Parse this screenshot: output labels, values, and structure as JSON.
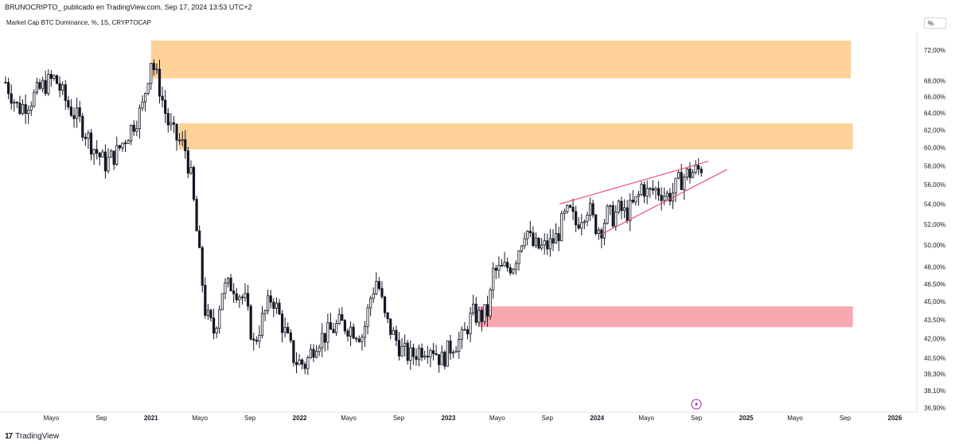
{
  "header": {
    "publisher_line": "BRUNOCRIPTO_ publicado en TradingView.com, Sep 17, 2024 13:53 UTC+2",
    "symbol_line": "Market Cap BTC Dominance, %, 1S, CRYPTOCAP",
    "scale_button": "%"
  },
  "footer": {
    "logo_mark": "17",
    "brand": "TradingView"
  },
  "colors": {
    "up": "#131722",
    "down": "#131722",
    "resistance_zone": "#fdd197",
    "support_zone": "#f9a8b2",
    "wedge_line": "#e8436b",
    "grid": "#ffffff",
    "axis_text": "#131722"
  },
  "icons": {
    "lightning": "lightning-icon"
  },
  "chart_data": {
    "type": "candlestick",
    "title": "Market Cap BTC Dominance, %, 1S, CRYPTOCAP",
    "y_scale": "log",
    "y_ticks": [
      "72,00%",
      "68,00%",
      "66,00%",
      "64,00%",
      "62,00%",
      "60,00%",
      "58,00%",
      "56,00%",
      "54,00%",
      "52,00%",
      "50,00%",
      "48,00%",
      "46,50%",
      "45,00%",
      "43,50%",
      "42,00%",
      "40,50%",
      "39,30%",
      "38,10%",
      "36,90%"
    ],
    "y_tick_values": [
      72,
      68,
      66,
      64,
      62,
      60,
      58,
      56,
      54,
      52,
      50,
      48,
      46.5,
      45,
      43.5,
      42,
      40.5,
      39.3,
      38.1,
      36.9
    ],
    "ylim": [
      36.6,
      74.5
    ],
    "x_ticks": [
      "Mayo",
      "Sep",
      "2021",
      "Mayo",
      "Sep",
      "2022",
      "Mayo",
      "Sep",
      "2023",
      "Mayo",
      "Sep",
      "2024",
      "Mayo",
      "Sep",
      "2025",
      "Mayo",
      "Sep",
      "2026"
    ],
    "x_tick_dates": [
      "2020-05-01",
      "2020-09-01",
      "2021-01-01",
      "2021-05-01",
      "2021-09-01",
      "2022-01-01",
      "2022-05-01",
      "2022-09-01",
      "2023-01-01",
      "2023-05-01",
      "2023-09-01",
      "2024-01-01",
      "2024-05-01",
      "2024-09-01",
      "2025-01-01",
      "2025-05-01",
      "2025-09-01",
      "2026-01-01"
    ],
    "xlim": [
      "2020-01-08",
      "2026-02-20"
    ],
    "close_series": [
      {
        "date": "2020-01-10",
        "close": 67.8
      },
      {
        "date": "2020-02-10",
        "close": 64.5
      },
      {
        "date": "2020-03-10",
        "close": 65.5
      },
      {
        "date": "2020-04-10",
        "close": 67.3
      },
      {
        "date": "2020-05-10",
        "close": 68.3
      },
      {
        "date": "2020-06-10",
        "close": 65.0
      },
      {
        "date": "2020-07-10",
        "close": 63.0
      },
      {
        "date": "2020-08-10",
        "close": 60.2
      },
      {
        "date": "2020-09-10",
        "close": 58.2
      },
      {
        "date": "2020-10-10",
        "close": 59.5
      },
      {
        "date": "2020-11-10",
        "close": 62.0
      },
      {
        "date": "2020-12-10",
        "close": 64.5
      },
      {
        "date": "2021-01-01",
        "close": 70.8
      },
      {
        "date": "2021-01-20",
        "close": 67.5
      },
      {
        "date": "2021-02-10",
        "close": 63.0
      },
      {
        "date": "2021-03-01",
        "close": 61.2
      },
      {
        "date": "2021-03-25",
        "close": 60.0
      },
      {
        "date": "2021-04-10",
        "close": 56.5
      },
      {
        "date": "2021-04-25",
        "close": 50.5
      },
      {
        "date": "2021-05-15",
        "close": 44.0
      },
      {
        "date": "2021-06-05",
        "close": 42.5
      },
      {
        "date": "2021-06-25",
        "close": 46.0
      },
      {
        "date": "2021-07-20",
        "close": 46.5
      },
      {
        "date": "2021-08-20",
        "close": 45.0
      },
      {
        "date": "2021-09-10",
        "close": 41.5
      },
      {
        "date": "2021-10-01",
        "close": 43.5
      },
      {
        "date": "2021-10-25",
        "close": 45.5
      },
      {
        "date": "2021-11-20",
        "close": 43.0
      },
      {
        "date": "2021-12-20",
        "close": 40.3
      },
      {
        "date": "2022-01-15",
        "close": 40.0
      },
      {
        "date": "2022-02-10",
        "close": 41.8
      },
      {
        "date": "2022-03-10",
        "close": 42.4
      },
      {
        "date": "2022-04-10",
        "close": 43.2
      },
      {
        "date": "2022-05-10",
        "close": 42.8
      },
      {
        "date": "2022-06-05",
        "close": 42.2
      },
      {
        "date": "2022-06-25",
        "close": 45.5
      },
      {
        "date": "2022-07-10",
        "close": 47.0
      },
      {
        "date": "2022-07-30",
        "close": 43.5
      },
      {
        "date": "2022-08-20",
        "close": 42.2
      },
      {
        "date": "2022-09-10",
        "close": 41.0
      },
      {
        "date": "2022-10-01",
        "close": 40.6
      },
      {
        "date": "2022-10-25",
        "close": 41.2
      },
      {
        "date": "2022-11-20",
        "close": 41.5
      },
      {
        "date": "2022-12-15",
        "close": 40.3
      },
      {
        "date": "2023-01-10",
        "close": 41.5
      },
      {
        "date": "2023-02-05",
        "close": 42.0
      },
      {
        "date": "2023-03-01",
        "close": 44.0
      },
      {
        "date": "2023-03-20",
        "close": 43.7
      },
      {
        "date": "2023-04-10",
        "close": 44.2
      },
      {
        "date": "2023-04-20",
        "close": 47.5
      },
      {
        "date": "2023-05-15",
        "close": 47.8
      },
      {
        "date": "2023-06-10",
        "close": 48.3
      },
      {
        "date": "2023-06-25",
        "close": 50.0
      },
      {
        "date": "2023-07-10",
        "close": 51.8
      },
      {
        "date": "2023-07-25",
        "close": 50.0
      },
      {
        "date": "2023-08-15",
        "close": 49.7
      },
      {
        "date": "2023-09-05",
        "close": 50.0
      },
      {
        "date": "2023-09-25",
        "close": 50.8
      },
      {
        "date": "2023-10-10",
        "close": 52.5
      },
      {
        "date": "2023-10-25",
        "close": 53.2
      },
      {
        "date": "2023-11-10",
        "close": 52.0
      },
      {
        "date": "2023-11-25",
        "close": 53.0
      },
      {
        "date": "2023-12-10",
        "close": 53.8
      },
      {
        "date": "2023-12-25",
        "close": 52.0
      },
      {
        "date": "2024-01-10",
        "close": 51.5
      },
      {
        "date": "2024-01-25",
        "close": 53.0
      },
      {
        "date": "2024-02-10",
        "close": 52.7
      },
      {
        "date": "2024-02-25",
        "close": 53.5
      },
      {
        "date": "2024-03-10",
        "close": 53.0
      },
      {
        "date": "2024-03-25",
        "close": 53.6
      },
      {
        "date": "2024-04-10",
        "close": 54.5
      },
      {
        "date": "2024-04-20",
        "close": 56.0
      },
      {
        "date": "2024-05-05",
        "close": 55.0
      },
      {
        "date": "2024-05-20",
        "close": 55.5
      },
      {
        "date": "2024-06-05",
        "close": 55.3
      },
      {
        "date": "2024-06-20",
        "close": 54.8
      },
      {
        "date": "2024-07-05",
        "close": 55.2
      },
      {
        "date": "2024-07-20",
        "close": 56.3
      },
      {
        "date": "2024-08-05",
        "close": 57.0
      },
      {
        "date": "2024-08-20",
        "close": 57.3
      },
      {
        "date": "2024-09-05",
        "close": 57.5
      },
      {
        "date": "2024-09-16",
        "close": 58.0
      }
    ],
    "zones": [
      {
        "label": "resistance-top",
        "from": "2021-01-01",
        "to": "2025-09-15",
        "low": 68.3,
        "high": 73.3
      },
      {
        "label": "resistance-mid",
        "from": "2021-03-10",
        "to": "2025-09-20",
        "low": 59.8,
        "high": 62.8
      },
      {
        "label": "support",
        "from": "2023-03-15",
        "to": "2025-09-20",
        "low": 42.9,
        "high": 44.6
      }
    ],
    "trendlines": [
      {
        "label": "wedge-upper",
        "from": {
          "date": "2023-10-01",
          "value": 54.0
        },
        "to": {
          "date": "2024-10-01",
          "value": 58.5
        }
      },
      {
        "label": "wedge-lower",
        "from": {
          "date": "2024-01-10",
          "value": 51.0
        },
        "to": {
          "date": "2024-11-15",
          "value": 57.6
        }
      }
    ],
    "grid": false,
    "legend": "none"
  }
}
